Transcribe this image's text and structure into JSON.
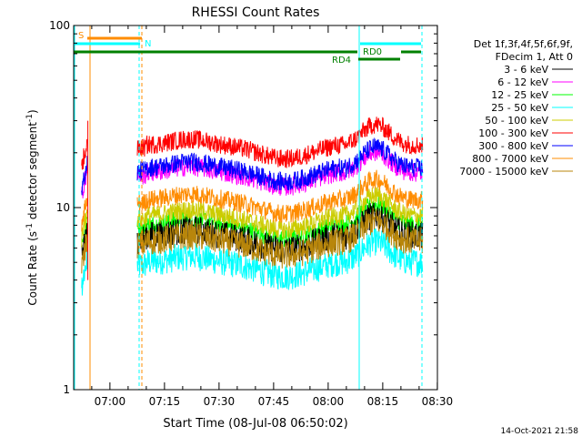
{
  "chart_data": {
    "type": "line",
    "title": "RHESSI Count Rates",
    "xlabel": "Start Time (08-Jul-08 06:50:02)",
    "ylabel_main": "Count Rate (s",
    "ylabel_sup": "-1",
    "ylabel_rest": " detector segment",
    "ylabel_sup2": "-1",
    "ylabel_close": ")",
    "yscale": "log",
    "ylim": [
      1,
      100
    ],
    "xlim_minutes": [
      0,
      100
    ],
    "x_ticks": [
      {
        "label": "07:00",
        "minutes": 9.97
      },
      {
        "label": "07:15",
        "minutes": 24.97
      },
      {
        "label": "07:30",
        "minutes": 39.97
      },
      {
        "label": "07:45",
        "minutes": 54.97
      },
      {
        "label": "08:00",
        "minutes": 69.97
      },
      {
        "label": "08:15",
        "minutes": 84.97
      },
      {
        "label": "08:30",
        "minutes": 99.97
      }
    ],
    "y_ticks": [
      {
        "label": "1",
        "value": 1
      },
      {
        "label": "10",
        "value": 10
      },
      {
        "label": "100",
        "value": 100
      }
    ],
    "legend_header": [
      "Det 1f,3f,4f,5f,6f,9f,",
      "FDecim 1, Att 0"
    ],
    "series": [
      {
        "name": "3 - 6 keV",
        "color": "#000000",
        "level": 7.0
      },
      {
        "name": "6 - 12 keV",
        "color": "#ff00ff",
        "level": 15.5
      },
      {
        "name": "12 - 25 keV",
        "color": "#00ff00",
        "level": 8.0
      },
      {
        "name": "25 - 50 keV",
        "color": "#00ffff",
        "level": 5.0
      },
      {
        "name": "50 - 100 keV",
        "color": "#cccc00",
        "level": 9.0
      },
      {
        "name": "100 - 300 keV",
        "color": "#ff0000",
        "level": 22.0
      },
      {
        "name": "300 - 800 keV",
        "color": "#0000ff",
        "level": 16.5
      },
      {
        "name": "800 - 7000 keV",
        "color": "#ff8c00",
        "level": 11.0
      },
      {
        "name": "7000 - 15000 keV",
        "color": "#b8860b",
        "level": 6.5
      }
    ],
    "annotations": [
      {
        "label": "S",
        "color": "#ff8c00"
      },
      {
        "label": "N",
        "color": "#00ffff"
      },
      {
        "label": "RD0",
        "color": "#008000"
      },
      {
        "label": "RD4",
        "color": "#008000"
      }
    ],
    "footer_date": "14-Oct-2021 21:58"
  }
}
